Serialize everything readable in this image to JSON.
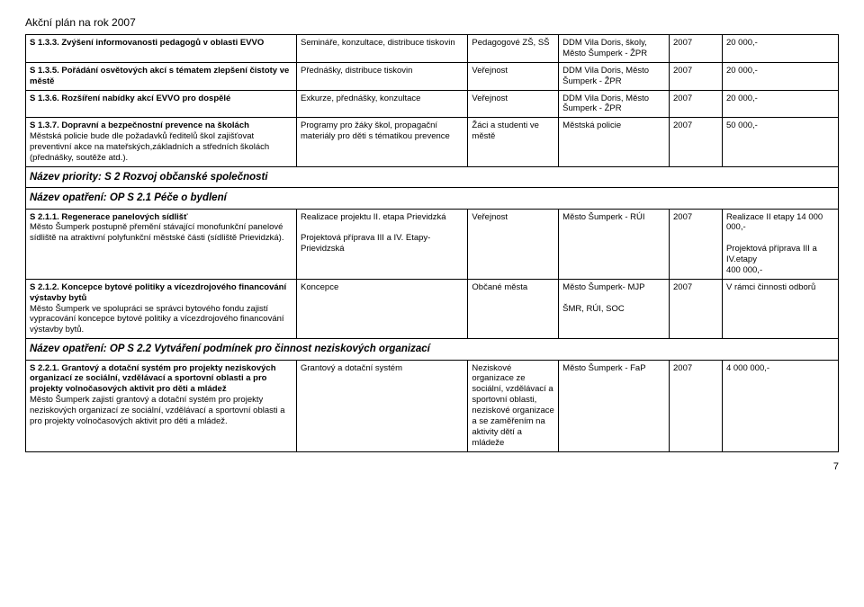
{
  "page": {
    "title": "Akční plán na rok 2007",
    "number": "7"
  },
  "rows": [
    {
      "c1_bold": "S 1.3.3. Zvýšení informovanosti pedagogů v oblasti EVVO",
      "c1_plain": "",
      "c2": "Semináře, konzultace, distribuce tiskovin",
      "c3": "Pedagogové ZŠ, SŠ",
      "c4": "DDM Vila Doris, školy, Město Šumperk - ŽPR",
      "c5": "2007",
      "c6": "20 000,-"
    },
    {
      "c1_bold": "S 1.3.5. Pořádání osvětových akcí s tématem zlepšení čistoty ve městě",
      "c1_plain": "",
      "c2": "Přednášky, distribuce tiskovin",
      "c3": "Veřejnost",
      "c4": "DDM Vila Doris, Město Šumperk - ŽPR",
      "c5": "2007",
      "c6": "20 000,-"
    },
    {
      "c1_bold": "S 1.3.6. Rozšíření nabídky akcí EVVO pro dospělé",
      "c1_plain": "",
      "c2": "Exkurze, přednášky, konzultace",
      "c3": "Veřejnost",
      "c4": "DDM Vila Doris, Město Šumperk - ŽPR",
      "c5": "2007",
      "c6": "20 000,-"
    },
    {
      "c1_bold": "S 1.3.7. Dopravní a bezpečnostní prevence na školách",
      "c1_plain": "Městská policie bude dle požadavků ředitelů škol zajišťovat preventivní akce na mateřských,základních a středních školách (přednášky, soutěže atd.).",
      "c2": "Programy pro žáky škol, propagační materiály pro děti s tématikou prevence",
      "c3": "Žáci a studenti ve městě",
      "c4": "Městská policie",
      "c5": "2007",
      "c6": "50 000,-"
    },
    {
      "header": "Název priority: S 2 Rozvoj občanské společnosti"
    },
    {
      "header": "Název opatření: OP S 2.1 Péče o bydlení"
    },
    {
      "c1_bold": "S 2.1.1. Regenerace panelových sídlišť",
      "c1_plain": "Město Šumperk postupně přemění stávající monofunkční panelové sídliště na atraktivní polyfunkční městské části (sídliště Prievidzká).",
      "c2": "Realizace projektu II. etapa Prievidzká\n\nProjektová příprava III a IV. Etapy- Prievidzská",
      "c3": "Veřejnost",
      "c4": "Město Šumperk - RÚI",
      "c5": "2007",
      "c6": "Realizace II etapy 14 000 000,-\n\nProjektová příprava III a IV.etapy\n400 000,-"
    },
    {
      "c1_bold": "S 2.1.2. Koncepce bytové politiky a vícezdrojového financování výstavby bytů",
      "c1_plain": "Město Šumperk ve spolupráci se správci bytového fondu zajistí vypracování koncepce bytové politiky a vícezdrojového financování výstavby bytů.",
      "c2": "Koncepce",
      "c3": "Občané města",
      "c4": "Město Šumperk- MJP\n\nŠMR, RÚI, SOC",
      "c5": "2007",
      "c6": "V rámci činnosti odborů"
    },
    {
      "header": "Název opatření: OP S 2.2 Vytváření podmínek pro činnost neziskových organizací"
    },
    {
      "c1_bold": "S 2.2.1. Grantový a dotační systém pro projekty neziskových organizací ze sociální, vzdělávací a sportovní oblasti a pro projekty volnočasových aktivit pro děti a mládež",
      "c1_plain": "Město Šumperk zajistí grantový a dotační systém pro projekty neziskových organizací ze sociální, vzdělávací a sportovní oblasti a pro projekty volnočasových aktivit pro děti a mládež.",
      "c2": "Grantový a dotační systém",
      "c3": "Neziskové organizace ze sociální, vzdělávací a sportovní oblasti, neziskové organizace a se zaměřením na aktivity dětí a mládeže",
      "c4": "Město Šumperk - FaP",
      "c5": "2007",
      "c6": "4 000 000,-"
    }
  ]
}
